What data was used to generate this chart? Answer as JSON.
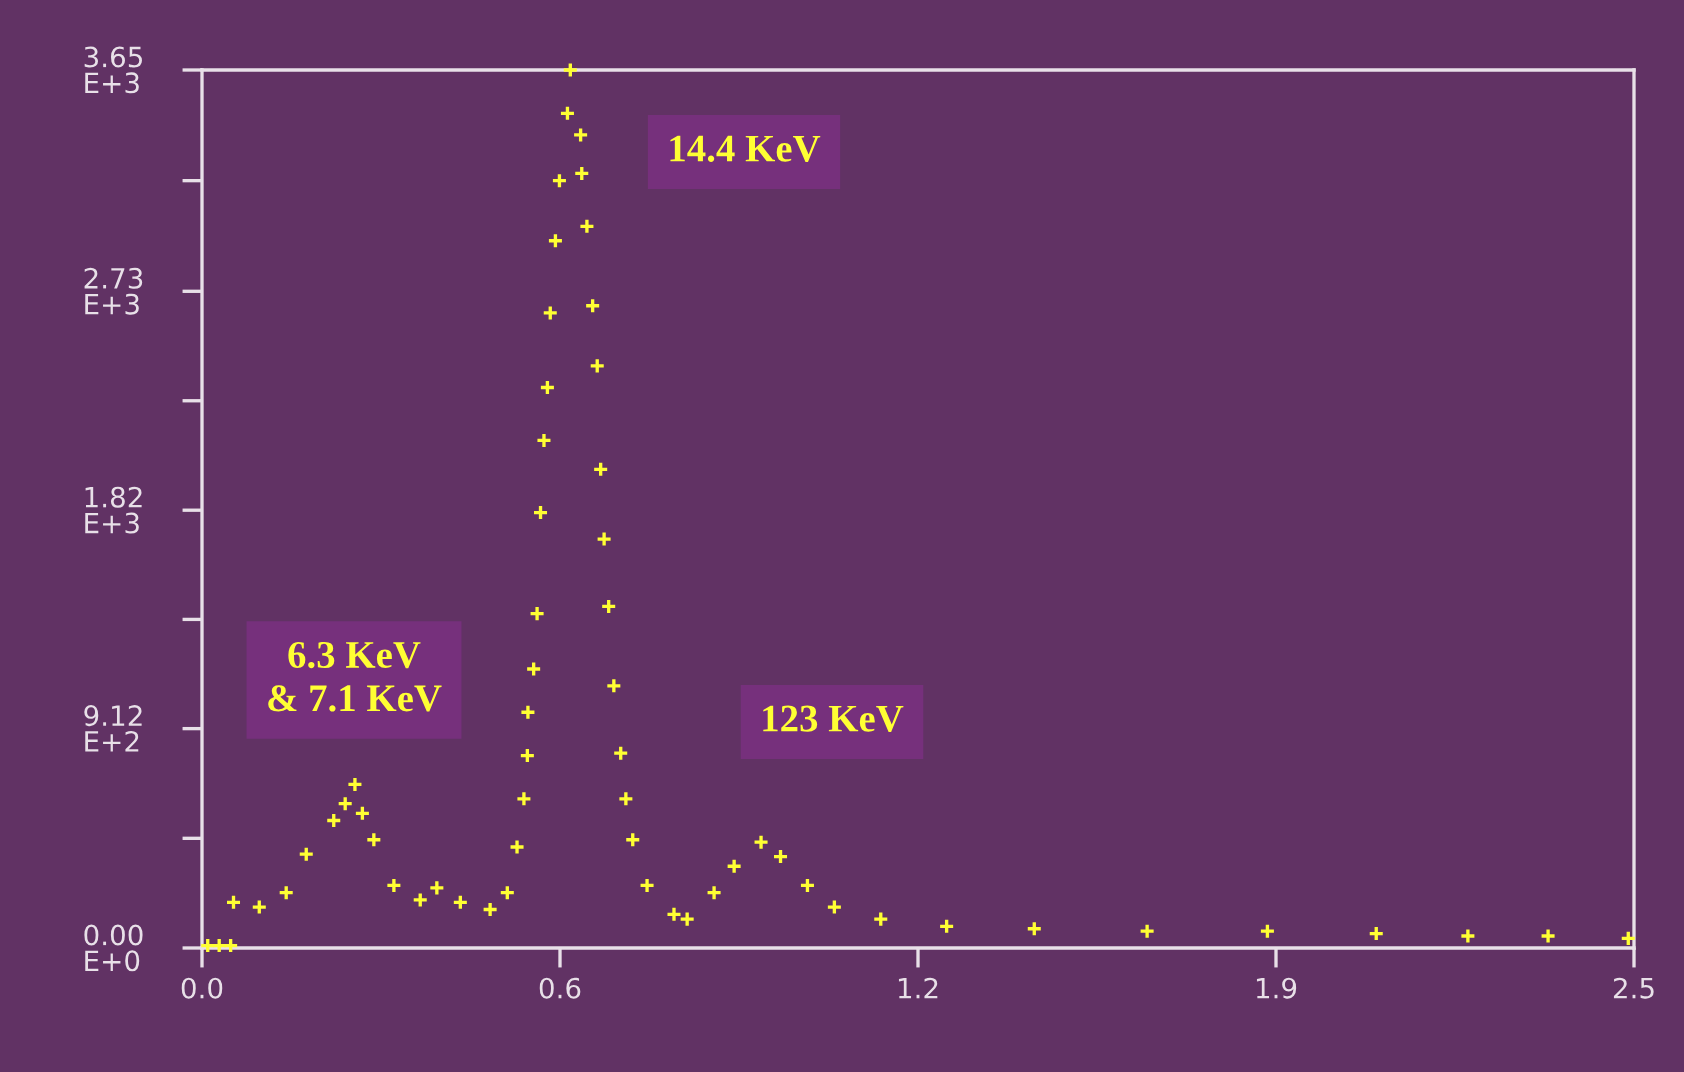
{
  "chart_data": {
    "type": "scatter",
    "marker": "cross",
    "grid": false,
    "series": [
      {
        "color": "#ffff33",
        "x": [
          0.01,
          0.03,
          0.05,
          0.055,
          0.1,
          0.147,
          0.182,
          0.23,
          0.25,
          0.267,
          0.28,
          0.3,
          0.335,
          0.381,
          0.41,
          0.451,
          0.503,
          0.533,
          0.55,
          0.562,
          0.568,
          0.569,
          0.579,
          0.585,
          0.591,
          0.597,
          0.603,
          0.608,
          0.617,
          0.624,
          0.638,
          0.643,
          0.661,
          0.663,
          0.672,
          0.682,
          0.69,
          0.696,
          0.702,
          0.71,
          0.719,
          0.731,
          0.74,
          0.752,
          0.777,
          0.824,
          0.847,
          0.894,
          0.929,
          0.976,
          1.01,
          1.057,
          1.104,
          1.185,
          1.3,
          1.453,
          1.65,
          1.86,
          2.05,
          2.21,
          2.35,
          2.49
        ],
        "values": [
          10,
          10,
          10,
          190,
          170,
          230,
          390,
          530,
          600,
          680,
          560,
          450,
          260,
          200,
          250,
          190,
          160,
          230,
          420,
          620,
          800,
          980,
          1160,
          1390,
          1810,
          2110,
          2330,
          2640,
          2940,
          3190,
          3470,
          3650,
          3380,
          3220,
          3000,
          2670,
          2420,
          1990,
          1700,
          1420,
          1090,
          810,
          620,
          450,
          260,
          140,
          120,
          230,
          340,
          440,
          380,
          260,
          170,
          120,
          90,
          80,
          70,
          70,
          60,
          50,
          50,
          40
        ]
      }
    ],
    "xlim": [
      0,
      2.5
    ],
    "xticks": [
      {
        "value": 0,
        "label": "0.0"
      },
      {
        "value": 0.625,
        "label": "0.6"
      },
      {
        "value": 1.25,
        "label": "1.2"
      },
      {
        "value": 1.875,
        "label": "1.9"
      },
      {
        "value": 2.5,
        "label": "2.5"
      }
    ],
    "ylim": [
      0,
      3650
    ],
    "yticks": [
      {
        "value": 0,
        "label": "0.00E+0"
      },
      {
        "value": 456,
        "label": null
      },
      {
        "value": 912,
        "label": "9.12E+2"
      },
      {
        "value": 1366,
        "label": null
      },
      {
        "value": 1820,
        "label": "1.82E+3"
      },
      {
        "value": 2275,
        "label": null
      },
      {
        "value": 2730,
        "label": "2.73E+3"
      },
      {
        "value": 3190,
        "label": null
      },
      {
        "value": 3650,
        "label": "3.65E+3"
      }
    ],
    "annotations": [
      "14.4 KeV",
      "6.3 KeV\n& 7.1 KeV",
      "123 KeV"
    ]
  }
}
